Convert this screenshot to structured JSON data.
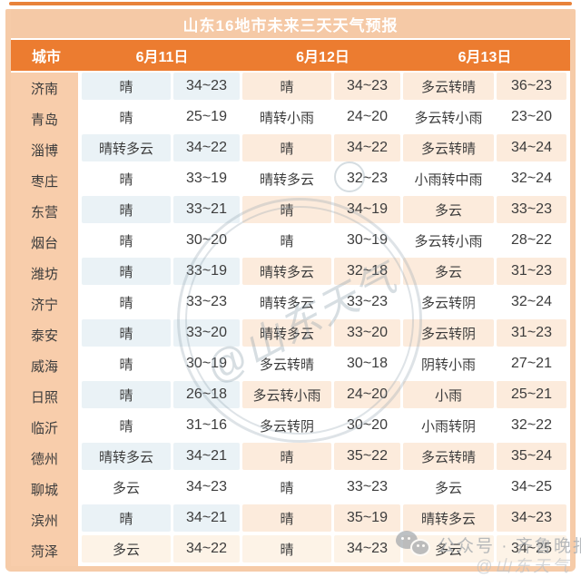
{
  "chart_data": {
    "type": "table",
    "title": "山东16地市未来三天天气预报",
    "columns": [
      "城市",
      "6月11日",
      "6月12日",
      "6月13日"
    ],
    "rows": [
      [
        "济南",
        "晴",
        "34~23",
        "晴",
        "34~23",
        "多云转晴",
        "36~23"
      ],
      [
        "青岛",
        "晴",
        "25~19",
        "晴转小雨",
        "24~20",
        "多云转小雨",
        "23~20"
      ],
      [
        "淄博",
        "晴转多云",
        "34~22",
        "晴",
        "34~22",
        "多云转晴",
        "34~24"
      ],
      [
        "枣庄",
        "晴",
        "33~19",
        "晴转多云",
        "32~23",
        "小雨转中雨",
        "32~24"
      ],
      [
        "东营",
        "晴",
        "33~21",
        "晴",
        "34~19",
        "多云",
        "33~23"
      ],
      [
        "烟台",
        "晴",
        "30~20",
        "晴",
        "30~19",
        "多云转小雨",
        "28~22"
      ],
      [
        "潍坊",
        "晴",
        "33~19",
        "晴转多云",
        "32~18",
        "多云",
        "31~23"
      ],
      [
        "济宁",
        "晴",
        "33~23",
        "晴转多云",
        "33~23",
        "多云转阴",
        "32~24"
      ],
      [
        "泰安",
        "晴",
        "33~20",
        "晴转多云",
        "33~20",
        "多云转阴",
        "31~23"
      ],
      [
        "威海",
        "晴",
        "30~19",
        "多云转晴",
        "30~18",
        "阴转小雨",
        "27~21"
      ],
      [
        "日照",
        "晴",
        "26~18",
        "多云转小雨",
        "24~20",
        "小雨",
        "25~21"
      ],
      [
        "临沂",
        "晴",
        "31~16",
        "多云转阴",
        "30~20",
        "小雨转阴",
        "32~22"
      ],
      [
        "德州",
        "晴转多云",
        "34~21",
        "晴",
        "35~22",
        "多云转晴",
        "35~24"
      ],
      [
        "聊城",
        "多云",
        "34~23",
        "晴",
        "33~23",
        "多云",
        "34~25"
      ],
      [
        "滨州",
        "晴",
        "34~21",
        "晴",
        "35~19",
        "晴转多云",
        "34~23"
      ],
      [
        "菏泽",
        "多云",
        "34~22",
        "晴",
        "34~23",
        "多云",
        "34~25"
      ]
    ],
    "layout_hints": {
      "row_groups": "each date spans weather + temperature columns",
      "tinted_rows": "odd rows tinted (blue for day1 cells, peach for day2/day3)"
    }
  },
  "watermarks": {
    "stamp": "@山东天气",
    "wechat_label": "公众号 · 齐鲁晚报",
    "wechat_handle": "@山东天气"
  },
  "colors": {
    "header_orange": "#EC7C30",
    "title_peach": "#F5C9A6",
    "border_peach": "#F6CBA8",
    "city_column_peach": "#F8CDAB",
    "cell_blue": "#EAF2F6",
    "cell_peach": "#FCEBDC",
    "text_dark": "#3C3C3C"
  }
}
